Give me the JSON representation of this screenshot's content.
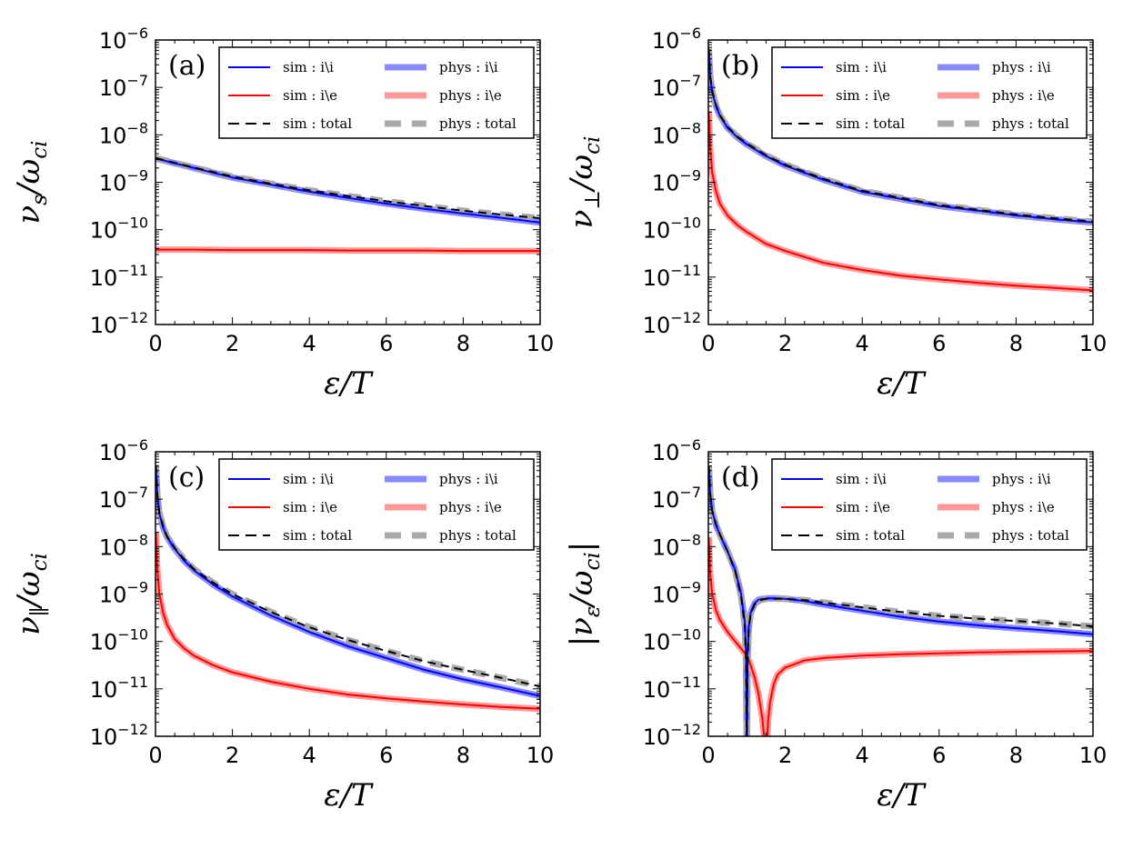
{
  "chart_data": [
    {
      "type": "line",
      "panel": "(a)",
      "xlabel": "ε/T",
      "ylabel": {
        "main": "ν",
        "sub": "s",
        "denom": "/ω",
        "denom_sub": "ci"
      },
      "xlim": [
        0,
        10
      ],
      "ylim_log10": [
        -12,
        -6
      ],
      "x_ticks": [
        "0",
        "2",
        "4",
        "6",
        "8",
        "10"
      ],
      "y_ticks": [
        {
          "base": "10",
          "exp": "−12"
        },
        {
          "base": "10",
          "exp": "−11"
        },
        {
          "base": "10",
          "exp": "−10"
        },
        {
          "base": "10",
          "exp": "−9"
        },
        {
          "base": "10",
          "exp": "−8"
        },
        {
          "base": "10",
          "exp": "−7"
        },
        {
          "base": "10",
          "exp": "−6"
        }
      ],
      "x": [
        0.01,
        0.5,
        1,
        2,
        3,
        4,
        5,
        6,
        7,
        8,
        9,
        10
      ],
      "series": [
        {
          "name": "sim : i\\i",
          "log10": [
            -8.5,
            -8.6,
            -8.7,
            -8.9,
            -9.05,
            -9.2,
            -9.33,
            -9.45,
            -9.56,
            -9.66,
            -9.75,
            -9.85
          ]
        },
        {
          "name": "sim : i\\e",
          "log10": [
            -10.42,
            -10.42,
            -10.42,
            -10.43,
            -10.43,
            -10.43,
            -10.44,
            -10.44,
            -10.44,
            -10.45,
            -10.45,
            -10.45
          ]
        },
        {
          "name": "sim : total",
          "log10": [
            -8.49,
            -8.59,
            -8.69,
            -8.88,
            -9.03,
            -9.17,
            -9.29,
            -9.4,
            -9.5,
            -9.6,
            -9.68,
            -9.76
          ]
        }
      ]
    },
    {
      "type": "line",
      "panel": "(b)",
      "xlabel": "ε/T",
      "ylabel": {
        "main": "ν",
        "sub": "⊥",
        "denom": "/ω",
        "denom_sub": "ci"
      },
      "xlim": [
        0,
        10
      ],
      "ylim_log10": [
        -12,
        -6
      ],
      "x_ticks": [
        "0",
        "2",
        "4",
        "6",
        "8",
        "10"
      ],
      "y_ticks": [
        {
          "base": "10",
          "exp": "−12"
        },
        {
          "base": "10",
          "exp": "−11"
        },
        {
          "base": "10",
          "exp": "−10"
        },
        {
          "base": "10",
          "exp": "−9"
        },
        {
          "base": "10",
          "exp": "−8"
        },
        {
          "base": "10",
          "exp": "−7"
        },
        {
          "base": "10",
          "exp": "−6"
        }
      ],
      "x": [
        0.01,
        0.05,
        0.1,
        0.2,
        0.3,
        0.5,
        0.75,
        1,
        1.5,
        2,
        3,
        4,
        5,
        6,
        7,
        8,
        9,
        10
      ],
      "series": [
        {
          "name": "sim : i\\i",
          "log10": [
            -6.2,
            -6.8,
            -7.1,
            -7.4,
            -7.6,
            -7.85,
            -8.05,
            -8.2,
            -8.45,
            -8.65,
            -8.95,
            -9.2,
            -9.35,
            -9.5,
            -9.6,
            -9.7,
            -9.78,
            -9.85
          ]
        },
        {
          "name": "sim : i\\e",
          "log10": [
            -7.5,
            -8.3,
            -8.8,
            -9.2,
            -9.45,
            -9.7,
            -9.9,
            -10.05,
            -10.3,
            -10.45,
            -10.7,
            -10.85,
            -10.97,
            -11.05,
            -11.12,
            -11.18,
            -11.23,
            -11.28
          ]
        },
        {
          "name": "sim : total",
          "log10": [
            -6.18,
            -6.77,
            -7.07,
            -7.38,
            -7.58,
            -7.83,
            -8.03,
            -8.18,
            -8.43,
            -8.63,
            -8.93,
            -9.18,
            -9.33,
            -9.48,
            -9.58,
            -9.68,
            -9.76,
            -9.83
          ]
        }
      ]
    },
    {
      "type": "line",
      "panel": "(c)",
      "xlabel": "ε/T",
      "ylabel": {
        "main": "ν",
        "sub": "∥",
        "denom": "/ω",
        "denom_sub": "ci"
      },
      "xlim": [
        0,
        10
      ],
      "ylim_log10": [
        -12,
        -6
      ],
      "x_ticks": [
        "0",
        "2",
        "4",
        "6",
        "8",
        "10"
      ],
      "y_ticks": [
        {
          "base": "10",
          "exp": "−12"
        },
        {
          "base": "10",
          "exp": "−11"
        },
        {
          "base": "10",
          "exp": "−10"
        },
        {
          "base": "10",
          "exp": "−9"
        },
        {
          "base": "10",
          "exp": "−8"
        },
        {
          "base": "10",
          "exp": "−7"
        },
        {
          "base": "10",
          "exp": "−6"
        }
      ],
      "x": [
        0.01,
        0.05,
        0.1,
        0.2,
        0.3,
        0.5,
        0.75,
        1,
        1.5,
        2,
        3,
        4,
        5,
        6,
        7,
        8,
        9,
        10
      ],
      "series": [
        {
          "name": "sim : i\\i",
          "log10": [
            -6.3,
            -6.95,
            -7.3,
            -7.6,
            -7.8,
            -8.05,
            -8.3,
            -8.5,
            -8.8,
            -9.05,
            -9.45,
            -9.8,
            -10.1,
            -10.35,
            -10.6,
            -10.8,
            -10.97,
            -11.15
          ]
        },
        {
          "name": "sim : i\\e",
          "log10": [
            -7.7,
            -8.5,
            -9.0,
            -9.4,
            -9.65,
            -9.95,
            -10.15,
            -10.3,
            -10.5,
            -10.65,
            -10.85,
            -11.0,
            -11.12,
            -11.2,
            -11.27,
            -11.33,
            -11.38,
            -11.42
          ]
        },
        {
          "name": "sim : total",
          "log10": [
            -6.28,
            -6.93,
            -7.28,
            -7.58,
            -7.78,
            -8.03,
            -8.27,
            -8.47,
            -8.76,
            -9.0,
            -9.38,
            -9.7,
            -9.97,
            -10.2,
            -10.42,
            -10.6,
            -10.77,
            -10.95
          ]
        }
      ]
    },
    {
      "type": "line",
      "panel": "(d)",
      "xlabel": "ε/T",
      "ylabel": {
        "main": "|ν",
        "sub": "ε",
        "denom": "/ω",
        "denom_sub": "ci",
        "close": "|"
      },
      "xlim": [
        0,
        10
      ],
      "ylim_log10": [
        -12,
        -6
      ],
      "x_ticks": [
        "0",
        "2",
        "4",
        "6",
        "8",
        "10"
      ],
      "y_ticks": [
        {
          "base": "10",
          "exp": "−12"
        },
        {
          "base": "10",
          "exp": "−11"
        },
        {
          "base": "10",
          "exp": "−10"
        },
        {
          "base": "10",
          "exp": "−9"
        },
        {
          "base": "10",
          "exp": "−8"
        },
        {
          "base": "10",
          "exp": "−7"
        },
        {
          "base": "10",
          "exp": "−6"
        }
      ],
      "x": [
        0.01,
        0.05,
        0.1,
        0.2,
        0.3,
        0.5,
        0.7,
        0.85,
        0.95,
        0.98,
        1.0,
        1.02,
        1.05,
        1.1,
        1.2,
        1.3,
        1.4,
        1.45,
        1.48,
        1.5,
        1.52,
        1.55,
        1.6,
        1.7,
        1.8,
        2,
        2.5,
        3,
        4,
        5,
        6,
        7,
        8,
        9,
        10
      ],
      "series": [
        {
          "name": "sim : i\\i",
          "log10": [
            -6.3,
            -6.9,
            -7.25,
            -7.55,
            -7.75,
            -8.1,
            -8.5,
            -9.0,
            -9.6,
            -10.3,
            -12.5,
            -10.3,
            -9.7,
            -9.4,
            -9.2,
            -9.12,
            -9.1,
            -9.1,
            -9.1,
            -9.09,
            -9.09,
            -9.09,
            -9.09,
            -9.09,
            -9.09,
            -9.1,
            -9.15,
            -9.22,
            -9.35,
            -9.48,
            -9.58,
            -9.66,
            -9.72,
            -9.78,
            -9.85
          ]
        },
        {
          "name": "sim : i\\e",
          "log10": [
            -7.8,
            -8.6,
            -9.0,
            -9.35,
            -9.55,
            -9.8,
            -10.0,
            -10.15,
            -10.25,
            -10.28,
            -10.3,
            -10.33,
            -10.4,
            -10.5,
            -10.75,
            -11.1,
            -11.6,
            -12.0,
            -12.5,
            -12.5,
            -12.2,
            -11.7,
            -11.3,
            -10.9,
            -10.7,
            -10.55,
            -10.4,
            -10.35,
            -10.3,
            -10.27,
            -10.25,
            -10.23,
            -10.22,
            -10.21,
            -10.2
          ]
        },
        {
          "name": "sim : total",
          "log10": [
            -6.29,
            -6.89,
            -7.24,
            -7.54,
            -7.74,
            -8.1,
            -8.52,
            -9.05,
            -9.7,
            -10.5,
            -12.5,
            -10.5,
            -9.75,
            -9.42,
            -9.22,
            -9.15,
            -9.12,
            -9.11,
            -9.11,
            -9.1,
            -9.1,
            -9.1,
            -9.1,
            -9.1,
            -9.1,
            -9.1,
            -9.13,
            -9.18,
            -9.28,
            -9.38,
            -9.46,
            -9.52,
            -9.57,
            -9.62,
            -9.68
          ]
        }
      ]
    }
  ],
  "legend": {
    "entries": [
      {
        "label": "sim : i\\i",
        "color": "#0000ff",
        "style": "solid-thin"
      },
      {
        "label": "sim : i\\e",
        "color": "#ff0000",
        "style": "solid-thin"
      },
      {
        "label": "sim : total",
        "color": "#000000",
        "style": "dashed-thin"
      },
      {
        "label": "phys : i\\i",
        "color": "#8888ff",
        "style": "solid-thick"
      },
      {
        "label": "phys : i\\e",
        "color": "#ff9999",
        "style": "solid-thick"
      },
      {
        "label": "phys : total",
        "color": "#aaaaaa",
        "style": "dashed-thick"
      }
    ]
  },
  "colors": {
    "sim_ii": "#0000ff",
    "sim_ie": "#ff0000",
    "sim_total": "#000000",
    "phys_ii": "#8888ff",
    "phys_ie": "#ff9999",
    "phys_total": "#aaaaaa"
  }
}
